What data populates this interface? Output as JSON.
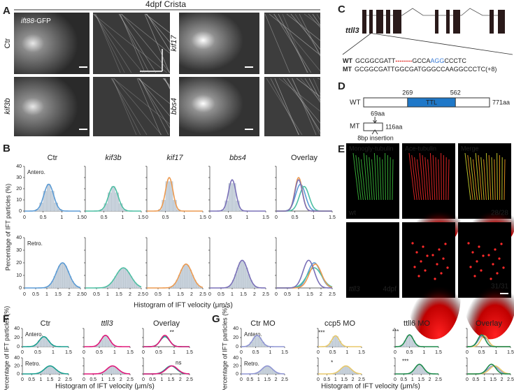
{
  "A": {
    "label": "A",
    "title": "4dpf Crista",
    "gfp": {
      "gene": "ift88",
      "suffix": "-GFP"
    },
    "left_rows": [
      "Ctr",
      "kif3b"
    ],
    "right_rows": [
      "kif17",
      "bbs4"
    ]
  },
  "B": {
    "label": "B",
    "columns": [
      {
        "title": "Ctr",
        "color": "#5b9bd5"
      },
      {
        "title": "kif3b",
        "color": "#4dbfa3",
        "italic": true
      },
      {
        "title": "kif17",
        "color": "#ec9a50",
        "italic": true
      },
      {
        "title": "bbs4",
        "color": "#7a70b8",
        "italic": true
      },
      {
        "title": "Overlay"
      }
    ],
    "rows": [
      {
        "label": "Antero.",
        "xlim": [
          0,
          1.5
        ],
        "xticks": [
          0,
          0.5,
          1,
          1.5
        ]
      },
      {
        "label": "Retro.",
        "xlim": [
          0,
          2.5
        ],
        "xticks": [
          0,
          0.5,
          1,
          1.5,
          2,
          2.5
        ]
      }
    ],
    "ylim": [
      0,
      40
    ],
    "yticks": [
      0,
      10,
      20,
      30,
      40
    ],
    "ylabel": "Percentage of IFT particles (%)",
    "xlabel": "Histogram of IFT velocity (μm/s)",
    "plots": [
      [
        {
          "curves": [
            {
              "mean": 0.65,
              "sd": 0.13,
              "peak": 24,
              "color": "#5b9bd5"
            }
          ]
        },
        {
          "curves": [
            {
              "mean": 0.75,
              "sd": 0.13,
              "peak": 22,
              "color": "#4dbfa3"
            }
          ]
        },
        {
          "curves": [
            {
              "mean": 0.6,
              "sd": 0.1,
              "peak": 30,
              "color": "#ec9a50"
            }
          ]
        },
        {
          "curves": [
            {
              "mean": 0.6,
              "sd": 0.1,
              "peak": 28,
              "color": "#7a70b8"
            }
          ]
        },
        {
          "curves": [
            {
              "mean": 0.65,
              "sd": 0.13,
              "peak": 24,
              "color": "#5b9bd5"
            },
            {
              "mean": 0.75,
              "sd": 0.13,
              "peak": 22,
              "color": "#4dbfa3"
            },
            {
              "mean": 0.6,
              "sd": 0.1,
              "peak": 30,
              "color": "#ec9a50"
            },
            {
              "mean": 0.6,
              "sd": 0.1,
              "peak": 28,
              "color": "#7a70b8"
            }
          ]
        }
      ],
      [
        {
          "curves": [
            {
              "mean": 1.7,
              "sd": 0.28,
              "peak": 20,
              "color": "#5b9bd5"
            }
          ]
        },
        {
          "curves": [
            {
              "mean": 1.7,
              "sd": 0.33,
              "peak": 16,
              "color": "#4dbfa3"
            }
          ]
        },
        {
          "curves": [
            {
              "mean": 1.75,
              "sd": 0.27,
              "peak": 19,
              "color": "#ec9a50"
            }
          ]
        },
        {
          "curves": [
            {
              "mean": 1.45,
              "sd": 0.25,
              "peak": 22,
              "color": "#7a70b8"
            }
          ]
        },
        {
          "curves": [
            {
              "mean": 1.7,
              "sd": 0.28,
              "peak": 20,
              "color": "#5b9bd5"
            },
            {
              "mean": 1.7,
              "sd": 0.33,
              "peak": 16,
              "color": "#4dbfa3"
            },
            {
              "mean": 1.75,
              "sd": 0.27,
              "peak": 19,
              "color": "#ec9a50"
            },
            {
              "mean": 1.45,
              "sd": 0.25,
              "peak": 22,
              "color": "#7a70b8"
            }
          ]
        }
      ]
    ]
  },
  "C": {
    "label": "C",
    "gene": "ttll3",
    "wt": {
      "label": "WT",
      "seq": [
        "GCGGCGATT",
        "--------",
        "GCCA",
        "AGG",
        "CCCTC"
      ]
    },
    "mt": {
      "label": "MT",
      "seq": "GCGGCGATTGGCGATGGGCCAAGGCCCTC(+8)"
    }
  },
  "D": {
    "label": "D",
    "wt": "WT",
    "mt": "MT",
    "ttl_start": 269,
    "ttl_end": 562,
    "domain": "TTL",
    "wt_length": {
      "value": 771,
      "label": "771aa"
    },
    "mt_site": {
      "value": 69,
      "label": "69aa"
    },
    "mt_length": {
      "value": 116,
      "label": "116aa"
    },
    "insertion": "8bp insertion"
  },
  "E": {
    "label": "E",
    "channels": [
      "Monogly-tubulin",
      "Ace-tubulin",
      "Merge"
    ],
    "rows": [
      {
        "genotype": "wt",
        "count": "28/28"
      },
      {
        "genotype": "ttll3",
        "stage": "4dpf",
        "count": "31/31"
      }
    ]
  },
  "F": {
    "label": "F",
    "columns": [
      {
        "title": "Ctr",
        "color": "#1a9e8f"
      },
      {
        "title": "ttll3",
        "color": "#e0187a",
        "italic": true
      },
      {
        "title": "Overlay"
      }
    ],
    "rows": [
      {
        "label": "Antero.",
        "xlim": [
          0,
          1.5
        ],
        "xticks": [
          0,
          0.5,
          1,
          1.5
        ]
      },
      {
        "label": "Retro.",
        "xlim": [
          0,
          2.5
        ],
        "xticks": [
          0,
          0.5,
          1,
          1.5,
          2,
          2.5
        ]
      }
    ],
    "ylim": [
      0,
      40
    ],
    "yticks": [
      0,
      20,
      40
    ],
    "ylabel": "Percentage of IFT particles (%)",
    "xlabel": "Histogram of IFT velocity (μm/s)",
    "plots": [
      [
        {
          "curves": [
            {
              "mean": 0.7,
              "sd": 0.15,
              "peak": 22,
              "color": "#1a9e8f"
            }
          ]
        },
        {
          "curves": [
            {
              "mean": 0.7,
              "sd": 0.14,
              "peak": 25,
              "color": "#e0187a"
            }
          ]
        },
        {
          "curves": [
            {
              "mean": 0.7,
              "sd": 0.15,
              "peak": 22,
              "color": "#1a9e8f"
            },
            {
              "mean": 0.7,
              "sd": 0.14,
              "peak": 25,
              "color": "#e0187a"
            }
          ],
          "annotation": "**"
        }
      ],
      [
        {
          "curves": [
            {
              "mean": 1.5,
              "sd": 0.3,
              "peak": 20,
              "color": "#1a9e8f"
            }
          ]
        },
        {
          "curves": [
            {
              "mean": 1.55,
              "sd": 0.3,
              "peak": 20,
              "color": "#e0187a"
            }
          ]
        },
        {
          "curves": [
            {
              "mean": 1.5,
              "sd": 0.3,
              "peak": 20,
              "color": "#1a9e8f"
            },
            {
              "mean": 1.55,
              "sd": 0.3,
              "peak": 20,
              "color": "#e0187a"
            }
          ],
          "annotation": "ns"
        }
      ]
    ]
  },
  "G": {
    "label": "G",
    "columns": [
      {
        "title": "Ctr MO",
        "color": "#8f95d3"
      },
      {
        "title": "ccp5 MO",
        "color": "#e8c96a"
      },
      {
        "title": "ttll6 MO",
        "color": "#1e8a4c"
      },
      {
        "title": "Overlay"
      }
    ],
    "rows": [
      {
        "label": "Antero.",
        "xlim": [
          0,
          1.5
        ],
        "xticks": [
          0,
          0.5,
          1,
          1.5
        ]
      },
      {
        "label": "Retro.",
        "xlim": [
          0,
          2.5
        ],
        "xticks": [
          0,
          0.5,
          1,
          1.5,
          2,
          2.5
        ]
      }
    ],
    "ylim": [
      0,
      40
    ],
    "yticks": [
      0,
      20,
      40
    ],
    "ylabel": "Percentage of IFT particles (%)",
    "xlabel": "Histogram of IFT velocity (μm/s)",
    "plots": [
      [
        {
          "curves": [
            {
              "mean": 0.55,
              "sd": 0.15,
              "peak": 25,
              "color": "#8f95d3"
            }
          ]
        },
        {
          "curves": [
            {
              "mean": 0.6,
              "sd": 0.13,
              "peak": 24,
              "color": "#e8c96a"
            }
          ],
          "annotation": "***"
        },
        {
          "curves": [
            {
              "mean": 0.5,
              "sd": 0.13,
              "peak": 26,
              "color": "#1e8a4c"
            }
          ],
          "annotation": "***"
        },
        {
          "curves": [
            {
              "mean": 0.55,
              "sd": 0.15,
              "peak": 25,
              "color": "#8f95d3"
            },
            {
              "mean": 0.6,
              "sd": 0.13,
              "peak": 24,
              "color": "#e8c96a"
            },
            {
              "mean": 0.5,
              "sd": 0.13,
              "peak": 26,
              "color": "#1e8a4c"
            }
          ]
        }
      ],
      [
        {
          "curves": [
            {
              "mean": 1.5,
              "sd": 0.3,
              "peak": 20,
              "color": "#8f95d3"
            }
          ]
        },
        {
          "curves": [
            {
              "mean": 1.6,
              "sd": 0.3,
              "peak": 20,
              "color": "#e8c96a"
            }
          ],
          "annotation": "*"
        },
        {
          "curves": [
            {
              "mean": 1.4,
              "sd": 0.25,
              "peak": 24,
              "color": "#1e8a4c"
            }
          ],
          "annotation": "***"
        },
        {
          "curves": [
            {
              "mean": 1.5,
              "sd": 0.3,
              "peak": 20,
              "color": "#8f95d3"
            },
            {
              "mean": 1.6,
              "sd": 0.3,
              "peak": 20,
              "color": "#e8c96a"
            },
            {
              "mean": 1.4,
              "sd": 0.25,
              "peak": 24,
              "color": "#1e8a4c"
            }
          ]
        }
      ]
    ]
  }
}
